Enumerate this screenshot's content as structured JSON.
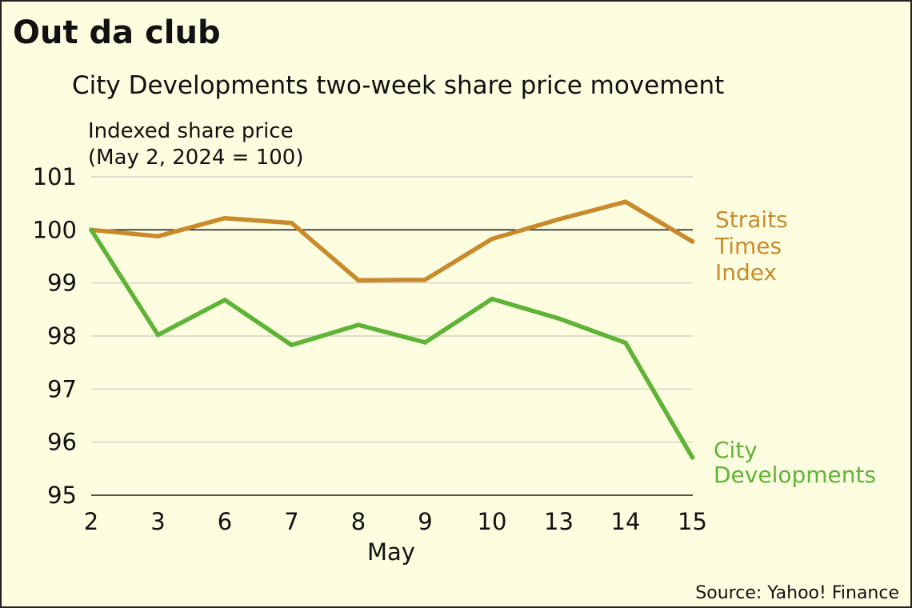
{
  "headline": "Out da club",
  "chart_data": {
    "type": "line",
    "title": "City Developments two-week share price movement",
    "ylabel": [
      "Indexed share price",
      "(May 2, 2024 = 100)"
    ],
    "xlabel": "May",
    "categories": [
      "2",
      "3",
      "6",
      "7",
      "8",
      "9",
      "10",
      "13",
      "14",
      "15"
    ],
    "ylim": [
      95,
      101
    ],
    "yticks": [
      95,
      96,
      97,
      98,
      99,
      100,
      101
    ],
    "reference_line": 100,
    "grid": true,
    "series": [
      {
        "name": "Straits Times Index",
        "name_lines": [
          "Straits",
          "Times",
          "Index"
        ],
        "color": "#c98a2b",
        "values": [
          100.0,
          99.88,
          100.22,
          100.13,
          99.05,
          99.06,
          99.83,
          100.2,
          100.53,
          99.78
        ]
      },
      {
        "name": "City Developments",
        "name_lines": [
          "City",
          "Developments"
        ],
        "color": "#5fb336",
        "values": [
          100.0,
          98.02,
          98.68,
          97.83,
          98.21,
          97.88,
          98.7,
          98.33,
          97.87,
          95.71
        ]
      }
    ]
  },
  "source": "Source: Yahoo! Finance"
}
